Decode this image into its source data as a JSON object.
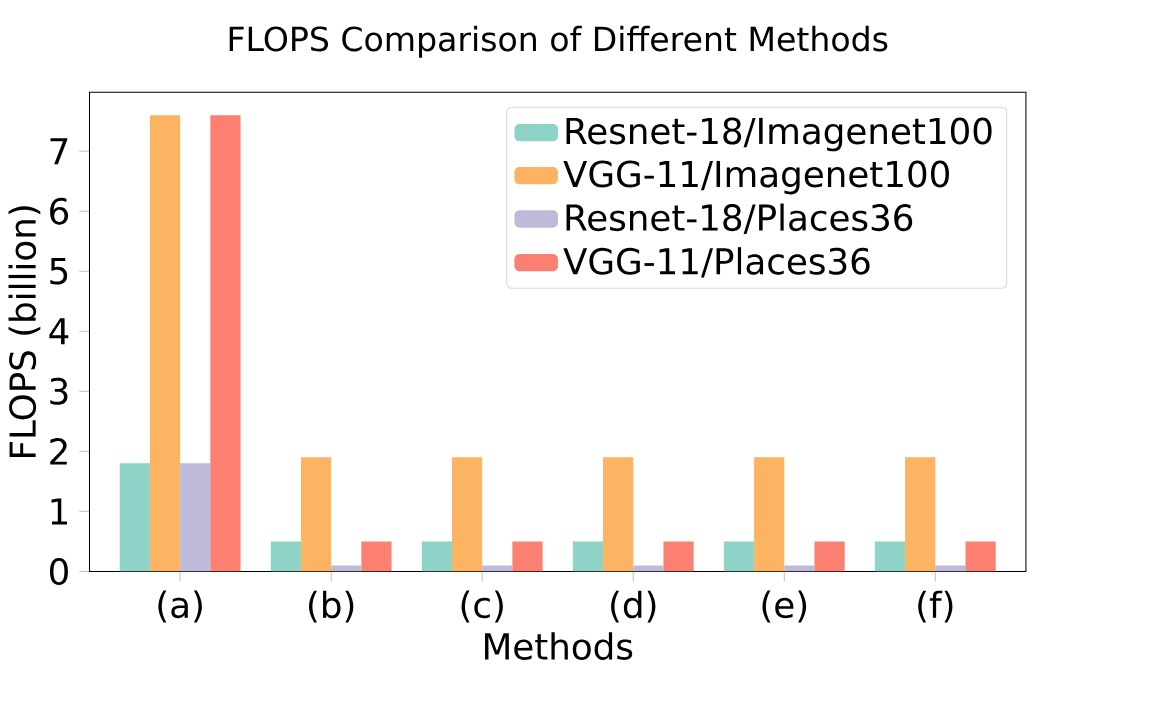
{
  "chart_data": {
    "type": "bar",
    "title": "FLOPS Comparison of Different Methods",
    "xlabel": "Methods",
    "ylabel": "FLOPS (billion)",
    "categories": [
      "(a)",
      "(b)",
      "(c)",
      "(d)",
      "(e)",
      "(f)"
    ],
    "series": [
      {
        "name": "Resnet-18/Imagenet100",
        "color": "#8dd3c7",
        "values": [
          1.8,
          0.5,
          0.5,
          0.5,
          0.5,
          0.5
        ]
      },
      {
        "name": "VGG-11/Imagenet100",
        "color": "#fdb462",
        "values": [
          7.6,
          1.9,
          1.9,
          1.9,
          1.9,
          1.9
        ]
      },
      {
        "name": "Resnet-18/Places36",
        "color": "#bebada",
        "values": [
          1.8,
          0.1,
          0.1,
          0.1,
          0.1,
          0.1
        ]
      },
      {
        "name": "VGG-11/Places36",
        "color": "#fb8072",
        "values": [
          7.6,
          0.5,
          0.5,
          0.5,
          0.5,
          0.5
        ]
      }
    ],
    "ylim": [
      0,
      7.98
    ],
    "yticks": [
      0,
      1,
      2,
      3,
      4,
      5,
      6,
      7
    ],
    "legend": "top right"
  }
}
